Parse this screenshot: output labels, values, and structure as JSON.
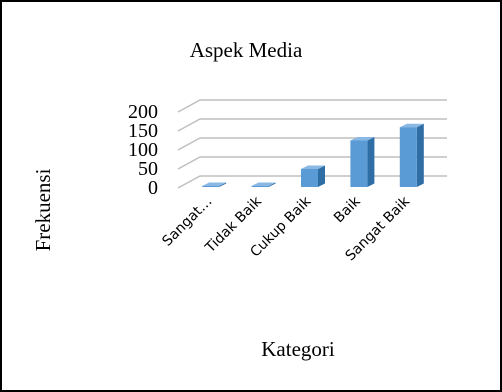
{
  "chart_data": {
    "type": "bar",
    "title": "Aspek Media",
    "xlabel": "Kategori",
    "ylabel": "Frekuensi",
    "categories": [
      "Sangat…",
      "Tidak Baik",
      "Cukup Baik",
      "Baik",
      "Sangat Baik"
    ],
    "values": [
      0,
      0,
      50,
      125,
      160
    ],
    "yticks": [
      "0",
      "50",
      "100",
      "150",
      "200"
    ],
    "ylim": [
      0,
      200
    ],
    "grid": true,
    "legend": "none",
    "style": "3d-column"
  },
  "colors": {
    "bar_front": "#5b9bd5",
    "bar_side": "#2f6da5",
    "bar_top": "#8ab8e4",
    "gridline": "#bfbfbf",
    "border": "#000000"
  }
}
